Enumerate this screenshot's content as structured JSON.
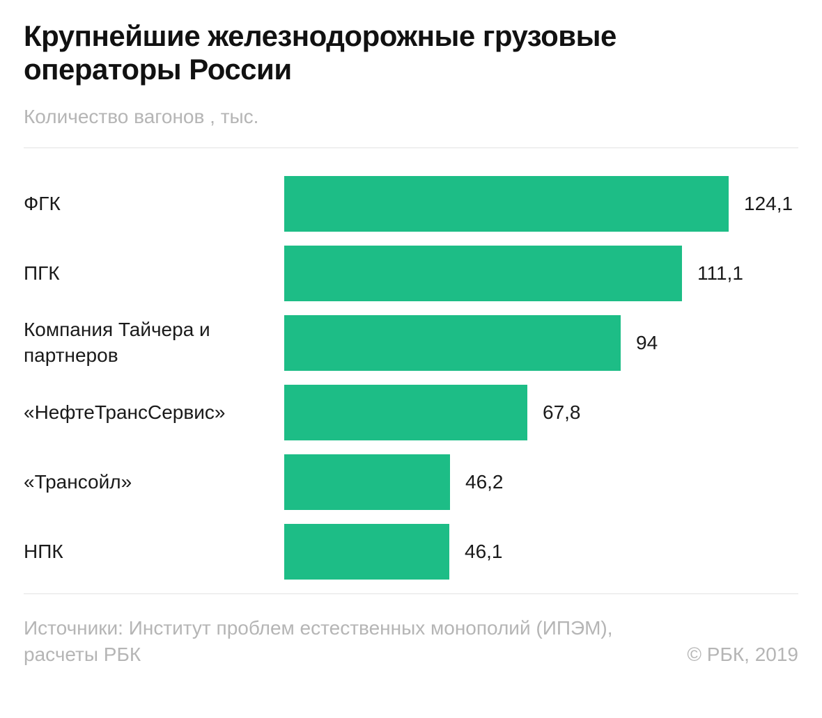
{
  "header": {
    "title": "Крупнейшие железнодорожные грузовые операторы России",
    "subtitle": "Количество вагонов , тыс."
  },
  "chart_data": {
    "type": "bar",
    "orientation": "horizontal",
    "title": "Крупнейшие железнодорожные грузовые операторы России",
    "ylabel": "Количество вагонов , тыс.",
    "xlabel": "",
    "categories": [
      "ФГК",
      "ПГК",
      "Компания Тайчера и партнеров",
      "«НефтеТрансСервис»",
      "«Трансойл»",
      "НПК"
    ],
    "values": [
      124.1,
      111.1,
      94,
      67.8,
      46.2,
      46.1
    ],
    "value_labels": [
      "124,1",
      "111,1",
      "94",
      "67,8",
      "46,2",
      "46,1"
    ],
    "xlim": [
      0,
      124.1
    ],
    "grid": false,
    "legend": false,
    "bar_color": "#1dbd86"
  },
  "footer": {
    "source_line1": "Источники: Институт проблем естественных монополий (ИПЭМ),",
    "source_line2": "расчеты РБК",
    "copyright": "© РБК, 2019"
  },
  "colors": {
    "bar": "#1dbd86",
    "text": "#1a1a1a",
    "muted": "#b5b5b5",
    "divider": "#e3e3e3"
  }
}
